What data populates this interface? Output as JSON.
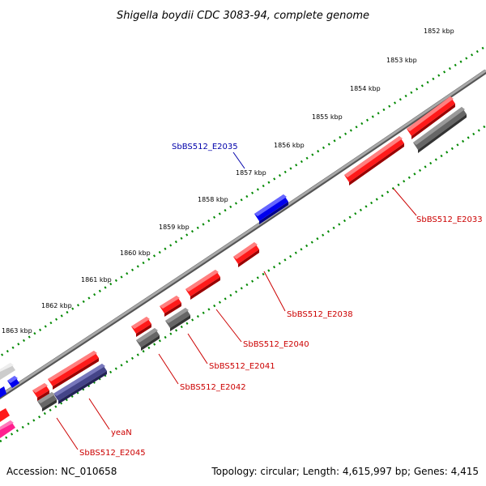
{
  "title": "Shigella boydii CDC 3083-94, complete genome",
  "footer": {
    "accession": "Accession: NC_010658",
    "summary": "Topology: circular; Length: 4,615,997 bp; Genes: 4,415"
  },
  "ruler_ticks": [
    "1852 kbp",
    "1853 kbp",
    "1854 kbp",
    "1855 kbp",
    "1856 kbp",
    "1857 kbp",
    "1858 kbp",
    "1859 kbp",
    "1860 kbp",
    "1861 kbp",
    "1862 kbp",
    "1863 kbp"
  ],
  "gene_labels": {
    "e2035": "SbBS512_E2035",
    "e2033": "SbBS512_E2033",
    "e2038": "SbBS512_E2038",
    "e2040": "SbBS512_E2040",
    "e2041": "SbBS512_E2041",
    "e2042": "SbBS512_E2042",
    "yean": "yeaN",
    "e2045": "SbBS512_E2045"
  },
  "colors": {
    "forward_gene": "#ff0000",
    "forward_label": "#cc0000",
    "highlight_gene": "#0000ee",
    "highlight_label": "#0000aa",
    "gray_gene": "#666666",
    "purple_gene": "#444488",
    "pink_gene": "#ff1f8f",
    "light_gray_gene": "#cccccc",
    "ruler_tick": "#008800",
    "backbone": "#888888"
  }
}
